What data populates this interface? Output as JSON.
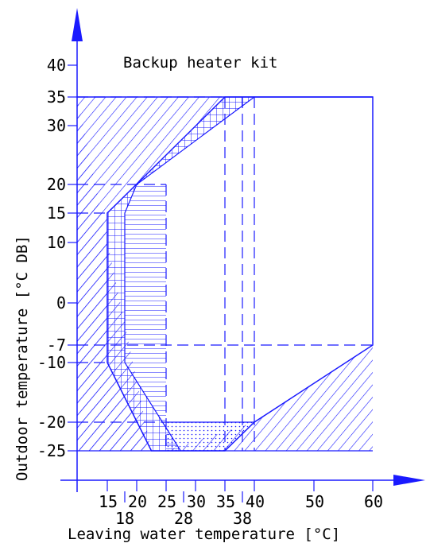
{
  "chart_data": {
    "type": "diagram",
    "title": "Backup heater kit",
    "xlabel": "Leaving water temperature [°C]",
    "ylabel": "Outdoor temperature [°C DB]",
    "xlim": [
      10,
      62
    ],
    "ylim": [
      -30,
      45
    ],
    "x_ticks_upper": [
      {
        "value": 15,
        "label": "15"
      },
      {
        "value": 20,
        "label": "20"
      },
      {
        "value": 25,
        "label": "25"
      },
      {
        "value": 30,
        "label": "30"
      },
      {
        "value": 35,
        "label": "35"
      },
      {
        "value": 40,
        "label": "40"
      },
      {
        "value": 50,
        "label": "50"
      },
      {
        "value": 60,
        "label": "60"
      }
    ],
    "x_ticks_lower": [
      {
        "value": 18,
        "label": "18"
      },
      {
        "value": 28,
        "label": "28"
      },
      {
        "value": 38,
        "label": "38"
      }
    ],
    "y_ticks": [
      {
        "value": 40,
        "label": "40"
      },
      {
        "value": 35,
        "label": "35"
      },
      {
        "value": 30,
        "label": "30"
      },
      {
        "value": 20,
        "label": "20"
      },
      {
        "value": 15,
        "label": "15"
      },
      {
        "value": 10,
        "label": "10"
      },
      {
        "value": 0,
        "label": "0"
      },
      {
        "value": -7,
        "label": "-7"
      },
      {
        "value": -10,
        "label": "-10"
      },
      {
        "value": -20,
        "label": "-20"
      },
      {
        "value": -25,
        "label": "-25"
      }
    ],
    "operating_range": [
      [
        15,
        -10
      ],
      [
        15,
        15
      ],
      [
        35,
        35
      ],
      [
        60,
        35
      ],
      [
        60,
        -7
      ],
      [
        40,
        -20
      ],
      [
        35,
        -25
      ],
      [
        22.5,
        -25
      ]
    ],
    "regions": [
      {
        "pattern": "diagonal",
        "polygon": [
          [
            10,
            -25
          ],
          [
            10,
            35
          ],
          [
            40,
            35
          ],
          [
            35,
            35
          ],
          [
            15,
            15
          ],
          [
            15,
            -10
          ],
          [
            22.5,
            -25
          ]
        ]
      },
      {
        "pattern": "diagonal",
        "polygon": [
          [
            22.5,
            -25
          ],
          [
            10,
            -25
          ],
          [
            10,
            35
          ]
        ]
      },
      {
        "pattern": "grid",
        "polygon": [
          [
            15,
            -10
          ],
          [
            15,
            15
          ],
          [
            35,
            35
          ],
          [
            40,
            35
          ],
          [
            20,
            20
          ],
          [
            18,
            15
          ],
          [
            18,
            -10
          ],
          [
            27.5,
            -25
          ],
          [
            22.5,
            -25
          ]
        ]
      },
      {
        "pattern": "horizontal",
        "polygon": [
          [
            18,
            -10
          ],
          [
            18,
            15
          ],
          [
            20,
            20
          ],
          [
            25,
            20
          ],
          [
            25,
            -25
          ],
          [
            27.5,
            -25
          ]
        ]
      },
      {
        "pattern": "dotted",
        "polygon": [
          [
            25,
            -20
          ],
          [
            40,
            -20
          ],
          [
            35,
            -25
          ],
          [
            25,
            -25
          ]
        ]
      },
      {
        "pattern": "diagonal",
        "polygon": [
          [
            25,
            -25
          ],
          [
            60,
            -25
          ],
          [
            60,
            -7
          ],
          [
            40,
            -20
          ]
        ]
      }
    ],
    "dashed_lines": [
      {
        "points": [
          [
            10,
            -7
          ],
          [
            60,
            -7
          ]
        ]
      },
      {
        "points": [
          [
            35,
            35
          ],
          [
            35,
            -25
          ]
        ]
      },
      {
        "points": [
          [
            38,
            35
          ],
          [
            38,
            -25
          ]
        ]
      },
      {
        "points": [
          [
            40,
            35
          ],
          [
            40,
            -25
          ]
        ]
      },
      {
        "points": [
          [
            25,
            20
          ],
          [
            25,
            -25
          ]
        ]
      },
      {
        "points": [
          [
            10,
            20
          ],
          [
            25,
            20
          ]
        ]
      },
      {
        "points": [
          [
            10,
            15
          ],
          [
            15,
            15
          ]
        ]
      },
      {
        "points": [
          [
            10,
            -10
          ],
          [
            15,
            -10
          ]
        ]
      },
      {
        "points": [
          [
            10,
            -20
          ],
          [
            25,
            -20
          ]
        ]
      },
      {
        "points": [
          [
            10,
            35
          ],
          [
            35,
            35
          ]
        ]
      }
    ]
  }
}
